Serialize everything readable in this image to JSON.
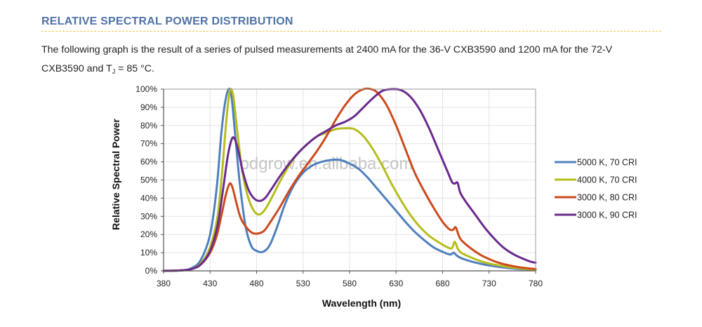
{
  "header": {
    "title": "RELATIVE SPECTRAL POWER DISTRIBUTION",
    "intro_line1": "The following graph is the result of a series of pulsed measurements at 2400 mA for the 36-V CXB3590 and 1200 mA for the 72-V",
    "intro_line2_pre": "CXB3590 and T",
    "intro_sub": "J",
    "intro_line2_post": " = 85 °C."
  },
  "watermark": "pdgrow.en.alibaba.com",
  "colors": {
    "accent": "#4f73a6",
    "divider": "#f0c94a",
    "grid": "#e3e3e3",
    "axis": "#555555"
  },
  "chart_data": {
    "type": "line",
    "title": "",
    "xlabel": "Wavelength (nm)",
    "ylabel": "Relative Spectral Power",
    "xlim": [
      380,
      780
    ],
    "ylim": [
      0,
      100
    ],
    "x_ticks": [
      380,
      430,
      480,
      530,
      580,
      630,
      680,
      730,
      780
    ],
    "y_ticks": [
      0,
      10,
      20,
      30,
      40,
      50,
      60,
      70,
      80,
      90,
      100
    ],
    "y_tick_labels": [
      "0%",
      "10%",
      "20%",
      "30%",
      "40%",
      "50%",
      "60%",
      "70%",
      "80%",
      "90%",
      "100%"
    ],
    "grid": true,
    "legend_position": "right",
    "series": [
      {
        "name": "5000 K, 70 CRI",
        "color": "#4f7fbf",
        "points": [
          [
            380,
            0
          ],
          [
            400,
            0.3
          ],
          [
            410,
            1.5
          ],
          [
            420,
            6
          ],
          [
            430,
            20
          ],
          [
            437,
            45
          ],
          [
            442,
            75
          ],
          [
            446,
            92
          ],
          [
            450,
            100
          ],
          [
            453,
            96
          ],
          [
            457,
            75
          ],
          [
            462,
            48
          ],
          [
            468,
            25
          ],
          [
            474,
            14
          ],
          [
            480,
            11
          ],
          [
            487,
            10.5
          ],
          [
            494,
            14
          ],
          [
            502,
            24
          ],
          [
            510,
            36
          ],
          [
            520,
            47
          ],
          [
            530,
            54
          ],
          [
            540,
            58
          ],
          [
            550,
            60
          ],
          [
            560,
            61
          ],
          [
            570,
            61
          ],
          [
            580,
            59
          ],
          [
            590,
            56
          ],
          [
            600,
            51
          ],
          [
            610,
            45
          ],
          [
            620,
            39
          ],
          [
            630,
            33
          ],
          [
            640,
            27
          ],
          [
            650,
            21.5
          ],
          [
            660,
            17
          ],
          [
            670,
            13
          ],
          [
            680,
            10.5
          ],
          [
            688,
            9
          ],
          [
            692,
            10
          ],
          [
            695,
            8.5
          ],
          [
            700,
            7
          ],
          [
            710,
            5.3
          ],
          [
            720,
            4
          ],
          [
            730,
            3
          ],
          [
            740,
            2.2
          ],
          [
            750,
            1.6
          ],
          [
            760,
            1.1
          ],
          [
            770,
            0.8
          ],
          [
            780,
            0.5
          ]
        ]
      },
      {
        "name": "4000 K, 70 CRI",
        "color": "#b5bd1e",
        "points": [
          [
            380,
            0
          ],
          [
            400,
            0.3
          ],
          [
            410,
            1
          ],
          [
            420,
            4
          ],
          [
            430,
            13
          ],
          [
            438,
            30
          ],
          [
            443,
            55
          ],
          [
            447,
            80
          ],
          [
            450,
            95
          ],
          [
            452,
            100
          ],
          [
            455,
            96
          ],
          [
            459,
            78
          ],
          [
            464,
            57
          ],
          [
            470,
            42
          ],
          [
            476,
            34
          ],
          [
            482,
            31
          ],
          [
            488,
            33
          ],
          [
            495,
            39
          ],
          [
            505,
            49
          ],
          [
            515,
            58
          ],
          [
            525,
            65
          ],
          [
            535,
            70
          ],
          [
            545,
            74
          ],
          [
            555,
            76
          ],
          [
            565,
            78
          ],
          [
            575,
            78.5
          ],
          [
            585,
            78
          ],
          [
            595,
            74
          ],
          [
            605,
            67
          ],
          [
            615,
            58
          ],
          [
            625,
            48
          ],
          [
            635,
            39
          ],
          [
            645,
            31
          ],
          [
            655,
            24.5
          ],
          [
            665,
            19.5
          ],
          [
            675,
            16
          ],
          [
            685,
            13
          ],
          [
            690,
            12.5
          ],
          [
            693,
            16
          ],
          [
            696,
            12.5
          ],
          [
            700,
            10
          ],
          [
            710,
            7.5
          ],
          [
            720,
            5.5
          ],
          [
            730,
            4
          ],
          [
            740,
            3
          ],
          [
            750,
            2.2
          ],
          [
            760,
            1.5
          ],
          [
            770,
            1
          ],
          [
            780,
            0.6
          ]
        ]
      },
      {
        "name": "3000 K, 80 CRI",
        "color": "#cc4a1c",
        "points": [
          [
            380,
            0
          ],
          [
            400,
            0.3
          ],
          [
            410,
            1
          ],
          [
            420,
            3.5
          ],
          [
            430,
            10
          ],
          [
            437,
            19
          ],
          [
            442,
            30
          ],
          [
            447,
            42
          ],
          [
            451,
            48
          ],
          [
            454,
            46
          ],
          [
            458,
            38
          ],
          [
            463,
            29
          ],
          [
            469,
            24
          ],
          [
            475,
            21
          ],
          [
            481,
            20.5
          ],
          [
            488,
            22
          ],
          [
            495,
            27
          ],
          [
            505,
            35
          ],
          [
            515,
            44
          ],
          [
            525,
            52
          ],
          [
            535,
            59
          ],
          [
            545,
            66
          ],
          [
            555,
            74
          ],
          [
            565,
            83
          ],
          [
            575,
            91
          ],
          [
            585,
            97
          ],
          [
            595,
            100
          ],
          [
            603,
            100
          ],
          [
            610,
            98
          ],
          [
            620,
            91
          ],
          [
            630,
            80
          ],
          [
            640,
            67
          ],
          [
            650,
            54
          ],
          [
            660,
            44
          ],
          [
            670,
            35
          ],
          [
            680,
            27
          ],
          [
            687,
            23
          ],
          [
            691,
            22.5
          ],
          [
            694,
            24
          ],
          [
            697,
            20
          ],
          [
            700,
            17
          ],
          [
            710,
            12.5
          ],
          [
            720,
            9
          ],
          [
            730,
            6.5
          ],
          [
            740,
            4.5
          ],
          [
            750,
            3.2
          ],
          [
            760,
            2.2
          ],
          [
            770,
            1.5
          ],
          [
            780,
            1
          ]
        ]
      },
      {
        "name": "3000 K, 90 CRI",
        "color": "#6a2a8e",
        "points": [
          [
            380,
            0
          ],
          [
            400,
            0.3
          ],
          [
            410,
            1
          ],
          [
            420,
            3.5
          ],
          [
            430,
            11
          ],
          [
            438,
            25
          ],
          [
            444,
            45
          ],
          [
            449,
            63
          ],
          [
            453,
            72
          ],
          [
            456,
            73
          ],
          [
            460,
            67
          ],
          [
            465,
            55
          ],
          [
            471,
            45
          ],
          [
            477,
            40
          ],
          [
            483,
            38.5
          ],
          [
            489,
            40
          ],
          [
            496,
            45
          ],
          [
            505,
            52
          ],
          [
            515,
            59
          ],
          [
            525,
            65
          ],
          [
            535,
            70
          ],
          [
            545,
            74
          ],
          [
            555,
            77
          ],
          [
            565,
            80
          ],
          [
            575,
            82
          ],
          [
            585,
            85
          ],
          [
            595,
            90
          ],
          [
            605,
            95
          ],
          [
            615,
            99
          ],
          [
            625,
            100
          ],
          [
            635,
            99.5
          ],
          [
            645,
            96
          ],
          [
            655,
            89
          ],
          [
            665,
            79
          ],
          [
            675,
            67
          ],
          [
            685,
            55
          ],
          [
            690,
            49
          ],
          [
            693,
            48
          ],
          [
            696,
            48.5
          ],
          [
            699,
            43
          ],
          [
            705,
            38
          ],
          [
            715,
            31
          ],
          [
            725,
            24
          ],
          [
            735,
            18
          ],
          [
            745,
            13
          ],
          [
            755,
            9.5
          ],
          [
            765,
            7
          ],
          [
            775,
            5
          ],
          [
            780,
            4.5
          ]
        ]
      }
    ]
  }
}
